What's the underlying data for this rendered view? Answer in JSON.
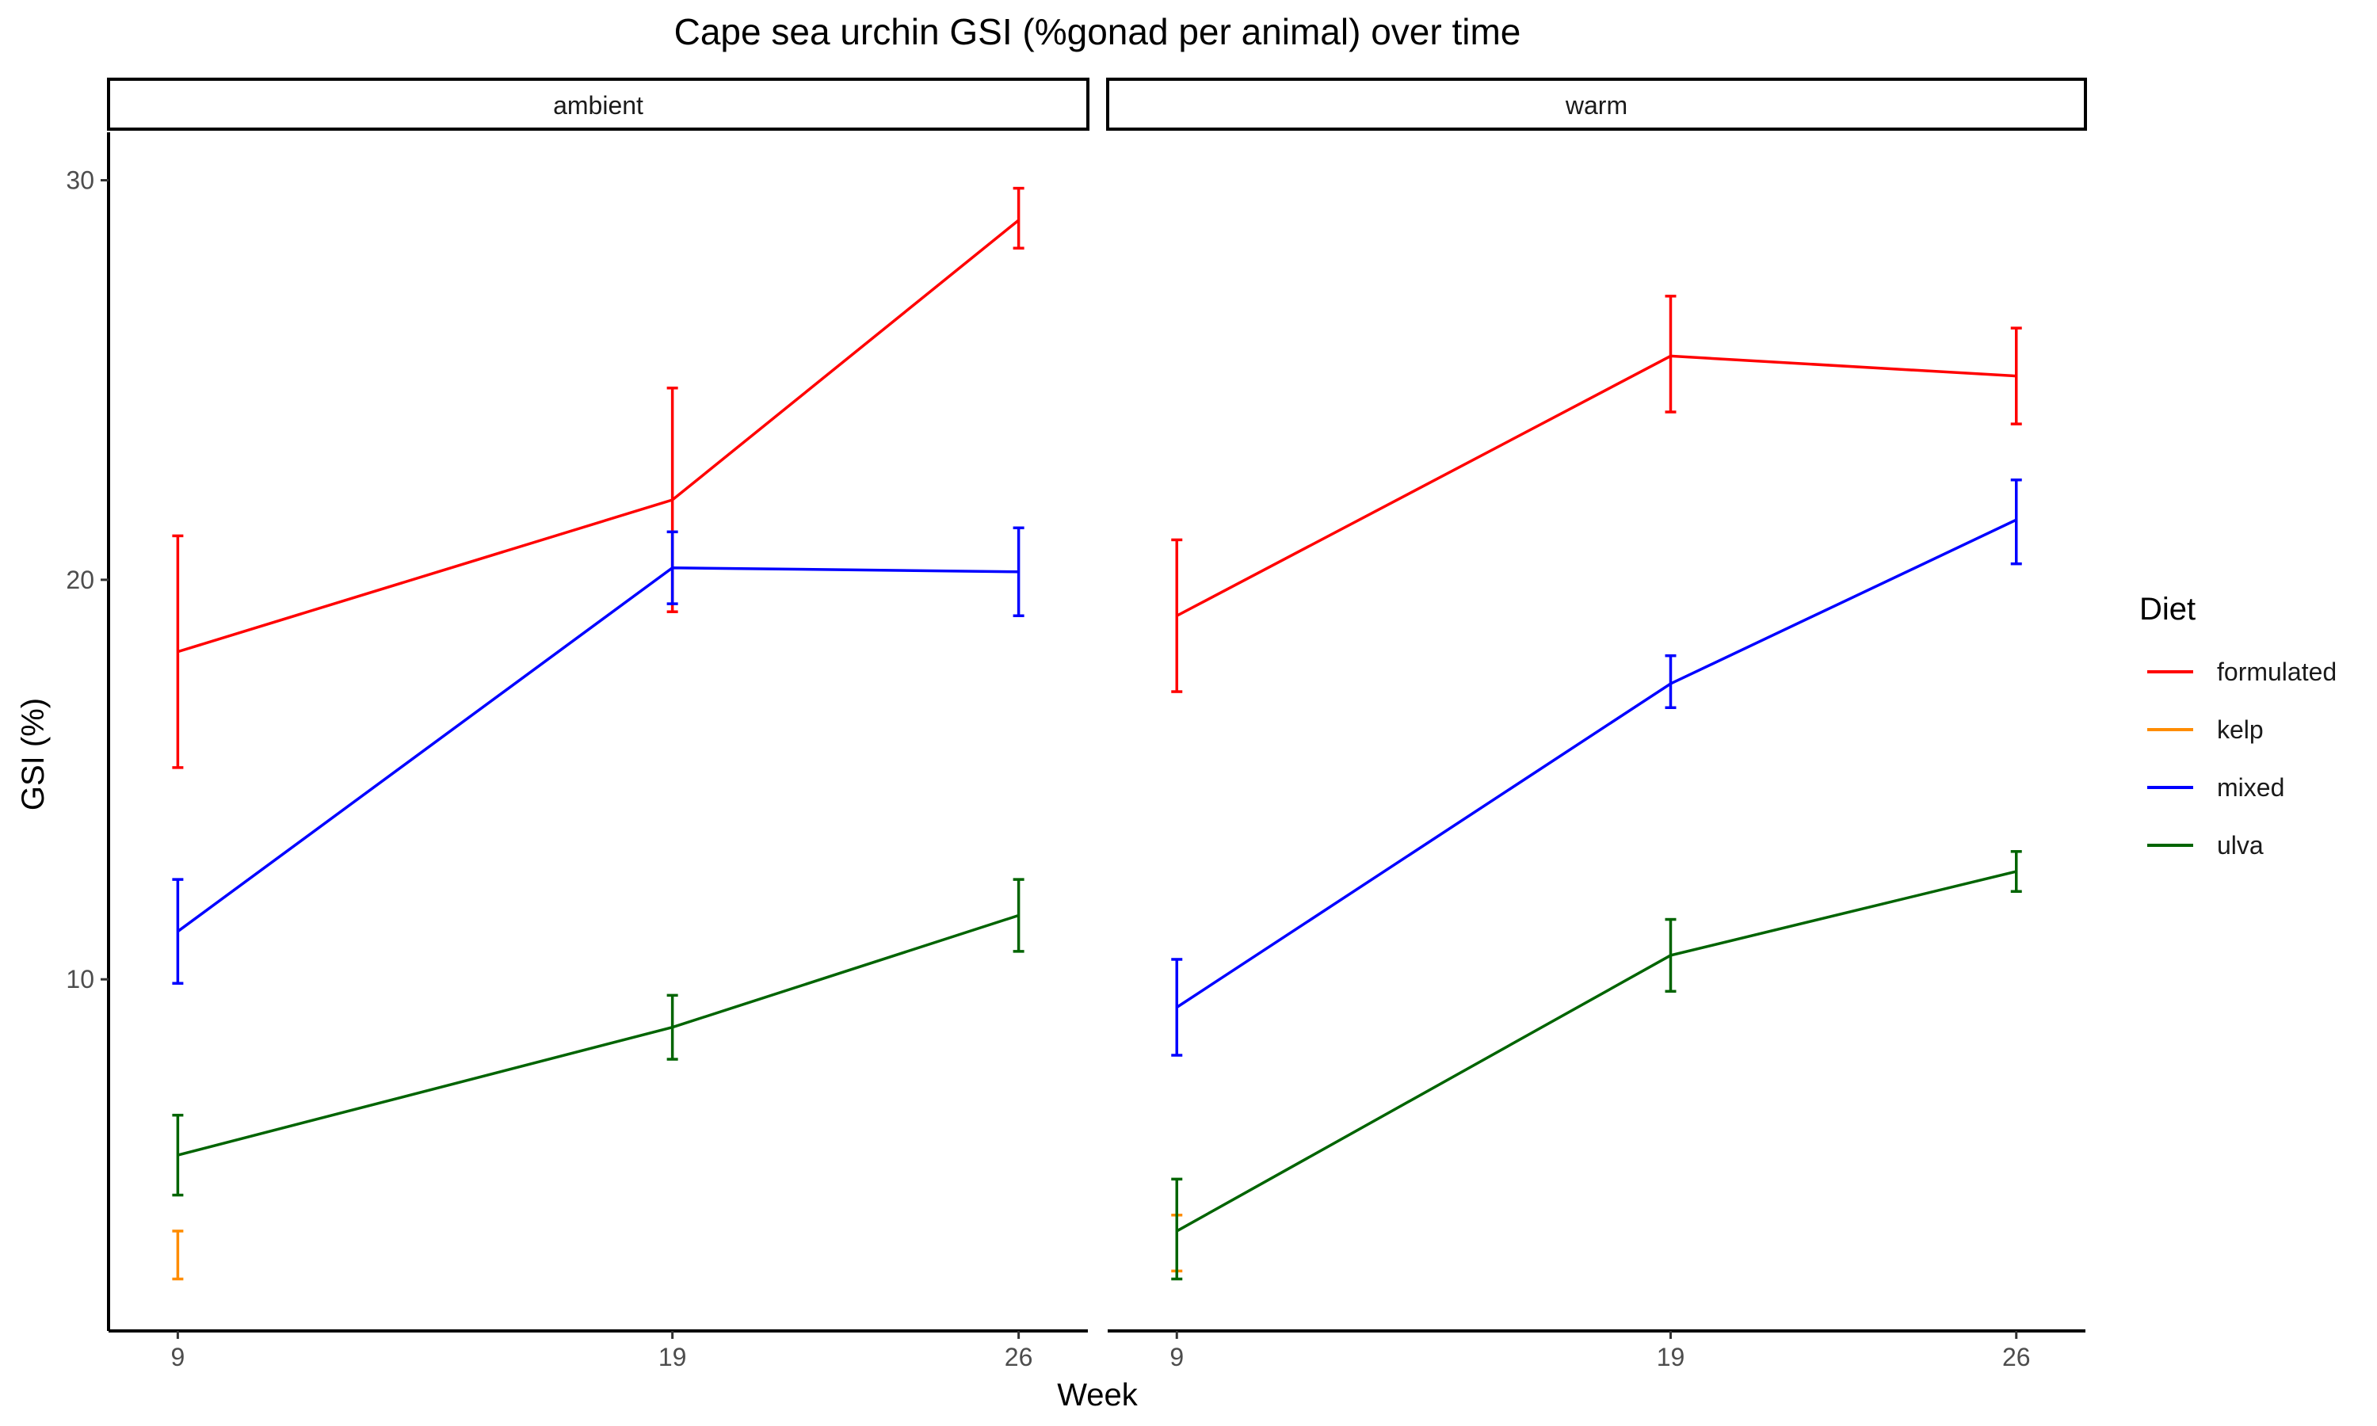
{
  "chart_data": {
    "type": "line",
    "title": "Cape sea urchin GSI (%gonad per animal) over time",
    "xlabel": "Week",
    "ylabel": "GSI (%)",
    "x": [
      9,
      19,
      26
    ],
    "x_tick_labels": [
      "9",
      "19",
      "26"
    ],
    "y_ticks": [
      10,
      20,
      30
    ],
    "y_tick_labels": [
      "10",
      "20",
      "30"
    ],
    "ylim": [
      1.2,
      31.2
    ],
    "legend": {
      "title": "Diet",
      "position": "right",
      "entries": [
        {
          "name": "formulated",
          "color": "#FF0000"
        },
        {
          "name": "kelp",
          "color": "#FF8C00"
        },
        {
          "name": "mixed",
          "color": "#0000FF"
        },
        {
          "name": "ulva",
          "color": "#006400"
        }
      ]
    },
    "panels": [
      {
        "label": "ambient",
        "series": [
          {
            "name": "formulated",
            "color": "#FF0000",
            "x": [
              9,
              19,
              26
            ],
            "y": [
              18.2,
              22.0,
              29.0
            ],
            "ymin": [
              15.3,
              19.2,
              28.3
            ],
            "ymax": [
              21.1,
              24.8,
              29.8
            ]
          },
          {
            "name": "kelp",
            "color": "#FF8C00",
            "x": [
              9
            ],
            "y": [
              3.5
            ],
            "ymin": [
              2.5
            ],
            "ymax": [
              3.7
            ]
          },
          {
            "name": "mixed",
            "color": "#0000FF",
            "x": [
              9,
              19,
              26
            ],
            "y": [
              11.2,
              20.3,
              20.2
            ],
            "ymin": [
              9.9,
              19.4,
              19.1
            ],
            "ymax": [
              12.5,
              21.2,
              21.3
            ]
          },
          {
            "name": "ulva",
            "color": "#006400",
            "x": [
              9,
              19,
              26
            ],
            "y": [
              5.6,
              8.8,
              11.6
            ],
            "ymin": [
              4.6,
              8.0,
              10.7
            ],
            "ymax": [
              6.6,
              9.6,
              12.5
            ]
          }
        ]
      },
      {
        "label": "warm",
        "series": [
          {
            "name": "formulated",
            "color": "#FF0000",
            "x": [
              9,
              19,
              26
            ],
            "y": [
              19.1,
              25.6,
              25.1
            ],
            "ymin": [
              17.2,
              24.2,
              23.9
            ],
            "ymax": [
              21.0,
              27.1,
              26.3
            ]
          },
          {
            "name": "kelp",
            "color": "#FF8C00",
            "x": [
              9
            ],
            "y": [
              3.5
            ],
            "ymin": [
              2.7
            ],
            "ymax": [
              4.1
            ]
          },
          {
            "name": "mixed",
            "color": "#0000FF",
            "x": [
              9,
              19,
              26
            ],
            "y": [
              9.3,
              17.4,
              21.5
            ],
            "ymin": [
              8.1,
              16.8,
              20.4
            ],
            "ymax": [
              10.5,
              18.1,
              22.5
            ]
          },
          {
            "name": "ulva",
            "color": "#006400",
            "x": [
              9,
              19,
              26
            ],
            "y": [
              3.7,
              10.6,
              12.7
            ],
            "ymin": [
              2.5,
              9.7,
              12.2
            ],
            "ymax": [
              5.0,
              11.5,
              13.2
            ]
          }
        ]
      }
    ]
  }
}
